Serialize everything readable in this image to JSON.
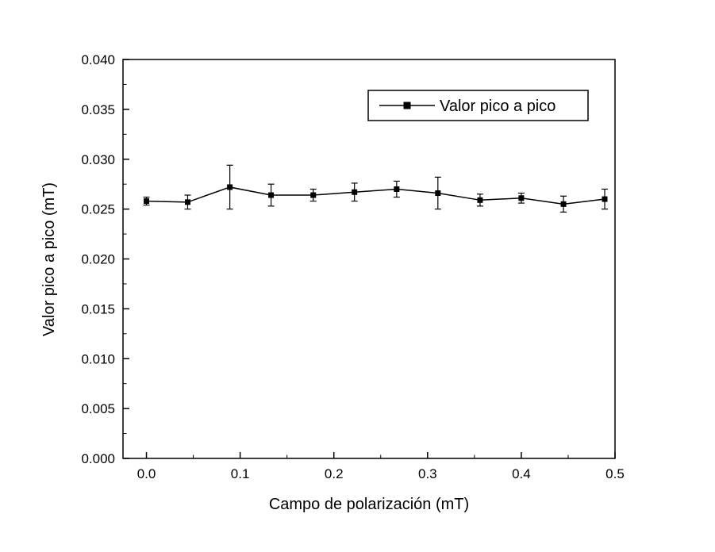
{
  "chart_data": {
    "type": "line",
    "title": "",
    "xlabel": "Campo de polarización (mT)",
    "ylabel": "Valor pico a pico (mT)",
    "legend": "Valor pico a pico",
    "legend_position": "top-center-right",
    "grid": false,
    "xlim": [
      -0.025,
      0.5
    ],
    "ylim": [
      0.0,
      0.04
    ],
    "x_tick_labels": [
      "0.0",
      "0.1",
      "0.2",
      "0.3",
      "0.4",
      "0.5"
    ],
    "y_tick_labels": [
      "0.000",
      "0.005",
      "0.010",
      "0.015",
      "0.020",
      "0.025",
      "0.030",
      "0.035",
      "0.040"
    ],
    "x_minor_step": 0.05,
    "y_minor_step": 0.0025,
    "line_color": "#000000",
    "marker": "square",
    "series": [
      {
        "name": "Valor pico a pico",
        "x": [
          0.0,
          0.044,
          0.089,
          0.133,
          0.178,
          0.222,
          0.267,
          0.311,
          0.356,
          0.4,
          0.445,
          0.489
        ],
        "y": [
          0.0258,
          0.0257,
          0.0272,
          0.0264,
          0.0264,
          0.0267,
          0.027,
          0.0266,
          0.0259,
          0.0261,
          0.0255,
          0.026
        ],
        "yerr": [
          0.0004,
          0.0007,
          0.0022,
          0.0011,
          0.0006,
          0.0009,
          0.0008,
          0.0016,
          0.0006,
          0.0005,
          0.0008,
          0.001
        ]
      }
    ]
  }
}
